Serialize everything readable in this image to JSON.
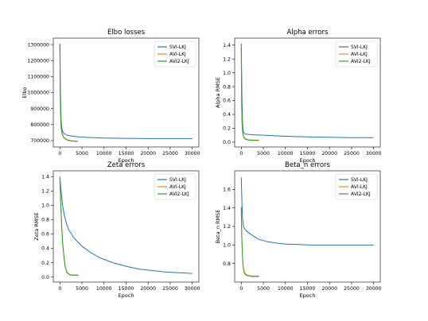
{
  "colors": {
    "svi": "#1f77b4",
    "avi": "#ff7f0e",
    "avi2": "#2ca02c"
  },
  "chart_data": [
    {
      "type": "line",
      "title": "Elbo losses",
      "xlabel": "Epoch",
      "ylabel": "Elbo",
      "xlim": [
        -1500,
        31500
      ],
      "ylim": [
        660000,
        1340000
      ],
      "xticks": [
        "0",
        "5000",
        "10000",
        "15000",
        "20000",
        "25000",
        "30000"
      ],
      "xtick_values": [
        0,
        5000,
        10000,
        15000,
        20000,
        25000,
        30000
      ],
      "yticks": [
        "700000",
        "800000",
        "900000",
        "1000000",
        "1100000",
        "1200000",
        "1300000"
      ],
      "ytick_values": [
        700000,
        800000,
        900000,
        1000000,
        1100000,
        1200000,
        1300000
      ],
      "legend": "top-right",
      "series": [
        {
          "name": "SVI-LKJ",
          "color_key": "svi",
          "x": [
            0,
            100,
            200,
            300,
            450,
            700,
            1000,
            1500,
            2500,
            4000,
            6000,
            10000,
            15000,
            20000,
            25000,
            30000
          ],
          "y": [
            1305000,
            1040000,
            900000,
            820000,
            775000,
            752000,
            742000,
            735000,
            729000,
            724000,
            720000,
            716000,
            714000,
            713000,
            713000,
            713000
          ]
        },
        {
          "name": "AVI-LKJ",
          "color_key": "avi",
          "x": [
            0,
            50,
            100,
            200,
            300,
            500,
            800,
            1200,
            1800,
            2500,
            3200,
            4000
          ],
          "y": [
            1300000,
            1100000,
            940000,
            830000,
            780000,
            745000,
            725000,
            712000,
            705000,
            700000,
            698000,
            697000
          ]
        },
        {
          "name": "AVI2-LKJ",
          "color_key": "avi2",
          "x": [
            0,
            50,
            100,
            200,
            300,
            500,
            800,
            1200,
            1800,
            2500,
            3200,
            4000
          ],
          "y": [
            1295000,
            1090000,
            930000,
            825000,
            775000,
            742000,
            722000,
            710000,
            703000,
            698000,
            696000,
            695000
          ]
        }
      ]
    },
    {
      "type": "line",
      "title": "Alpha errors",
      "xlabel": "Epoch",
      "ylabel": "Alpha RMSE",
      "xlim": [
        -1500,
        31500
      ],
      "ylim": [
        -0.07,
        1.5
      ],
      "xticks": [
        "0",
        "5000",
        "10000",
        "15000",
        "20000",
        "25000",
        "30000"
      ],
      "xtick_values": [
        0,
        5000,
        10000,
        15000,
        20000,
        25000,
        30000
      ],
      "yticks": [
        "0.0",
        "0.2",
        "0.4",
        "0.6",
        "0.8",
        "1.0",
        "1.2",
        "1.4"
      ],
      "ytick_values": [
        0,
        0.2,
        0.4,
        0.6,
        0.8,
        1.0,
        1.2,
        1.4
      ],
      "legend": "top-right",
      "series": [
        {
          "name": "SVI-LKJ",
          "color_key": "svi",
          "x": [
            0,
            100,
            200,
            300,
            500,
            800,
            1200,
            2000,
            3000,
            5000,
            8000,
            12000,
            16000,
            20000,
            25000,
            30000
          ],
          "y": [
            1.42,
            0.9,
            0.5,
            0.25,
            0.14,
            0.12,
            0.115,
            0.11,
            0.105,
            0.1,
            0.09,
            0.08,
            0.075,
            0.07,
            0.065,
            0.065
          ]
        },
        {
          "name": "AVI-LKJ",
          "color_key": "avi",
          "x": [
            0,
            50,
            100,
            200,
            350,
            600,
            1000,
            1600,
            2500,
            3300,
            4000
          ],
          "y": [
            1.38,
            0.85,
            0.5,
            0.25,
            0.12,
            0.07,
            0.045,
            0.035,
            0.03,
            0.03,
            0.03
          ]
        },
        {
          "name": "AVI2-LKJ",
          "color_key": "avi2",
          "x": [
            0,
            50,
            100,
            200,
            350,
            600,
            1000,
            1600,
            2500,
            3300,
            4000
          ],
          "y": [
            1.36,
            0.83,
            0.48,
            0.24,
            0.11,
            0.065,
            0.04,
            0.03,
            0.025,
            0.025,
            0.025
          ]
        }
      ]
    },
    {
      "type": "line",
      "title": "Zeta errors",
      "xlabel": "Epoch",
      "ylabel": "Zeta RMSE",
      "xlim": [
        -1500,
        31500
      ],
      "ylim": [
        -0.07,
        1.48
      ],
      "xticks": [
        "0",
        "5000",
        "10000",
        "15000",
        "20000",
        "25000",
        "30000"
      ],
      "xtick_values": [
        0,
        5000,
        10000,
        15000,
        20000,
        25000,
        30000
      ],
      "yticks": [
        "0.0",
        "0.2",
        "0.4",
        "0.6",
        "0.8",
        "1.0",
        "1.2",
        "1.4"
      ],
      "ytick_values": [
        0,
        0.2,
        0.4,
        0.6,
        0.8,
        1.0,
        1.2,
        1.4
      ],
      "legend": "top-right",
      "series": [
        {
          "name": "SVI-LKJ",
          "color_key": "svi",
          "x": [
            0,
            300,
            600,
            1000,
            1500,
            2000,
            3000,
            4000,
            5000,
            7000,
            9000,
            12000,
            15000,
            18000,
            21000,
            24000,
            27000,
            30000
          ],
          "y": [
            1.4,
            1.18,
            1.0,
            0.86,
            0.74,
            0.66,
            0.56,
            0.49,
            0.43,
            0.34,
            0.27,
            0.2,
            0.15,
            0.11,
            0.09,
            0.07,
            0.06,
            0.05
          ]
        },
        {
          "name": "AVI-LKJ",
          "color_key": "avi",
          "x": [
            0,
            100,
            250,
            400,
            600,
            900,
            1200,
            1600,
            2200,
            3000,
            3700,
            4200
          ],
          "y": [
            1.4,
            1.2,
            0.95,
            0.72,
            0.5,
            0.3,
            0.15,
            0.07,
            0.035,
            0.03,
            0.03,
            0.03
          ]
        },
        {
          "name": "AVI2-LKJ",
          "color_key": "avi2",
          "x": [
            0,
            100,
            250,
            400,
            600,
            900,
            1200,
            1600,
            2200,
            3000,
            3700,
            4200
          ],
          "y": [
            1.38,
            1.18,
            0.93,
            0.7,
            0.48,
            0.28,
            0.14,
            0.06,
            0.03,
            0.025,
            0.025,
            0.025
          ]
        }
      ]
    },
    {
      "type": "line",
      "title": "Beta_n errors",
      "xlabel": "Epoch",
      "ylabel": "Beta_n RMSE",
      "xlim": [
        -1500,
        31500
      ],
      "ylim": [
        0.6,
        1.8
      ],
      "xticks": [
        "0",
        "5000",
        "10000",
        "15000",
        "20000",
        "25000",
        "30000"
      ],
      "xtick_values": [
        0,
        5000,
        10000,
        15000,
        20000,
        25000,
        30000
      ],
      "yticks": [
        "0.8",
        "1.0",
        "1.2",
        "1.4",
        "1.6"
      ],
      "ytick_values": [
        0.8,
        1.0,
        1.2,
        1.4,
        1.6
      ],
      "legend": "top-right",
      "series": [
        {
          "name": "SVI-LKJ",
          "color_key": "svi",
          "x": [
            0,
            150,
            300,
            500,
            800,
            1200,
            2000,
            3000,
            4000,
            6000,
            8000,
            10000,
            13000,
            16000,
            20000,
            25000,
            30000
          ],
          "y": [
            1.73,
            1.45,
            1.28,
            1.2,
            1.17,
            1.15,
            1.12,
            1.09,
            1.06,
            1.035,
            1.02,
            1.01,
            1.005,
            1.0,
            1.0,
            1.0,
            1.0
          ]
        },
        {
          "name": "AVI-LKJ",
          "color_key": "avi",
          "x": [
            0,
            100,
            250,
            400,
            600,
            900,
            1300,
            1800,
            2500,
            3200,
            4000
          ],
          "y": [
            1.4,
            1.1,
            0.9,
            0.78,
            0.72,
            0.69,
            0.675,
            0.67,
            0.665,
            0.665,
            0.665
          ]
        },
        {
          "name": "AVI2-LKJ",
          "color_key": "avi2",
          "x": [
            0,
            100,
            250,
            400,
            600,
            900,
            1300,
            1800,
            2500,
            3200,
            4000
          ],
          "y": [
            1.41,
            1.1,
            0.89,
            0.77,
            0.71,
            0.68,
            0.67,
            0.665,
            0.66,
            0.66,
            0.66
          ]
        }
      ]
    }
  ]
}
